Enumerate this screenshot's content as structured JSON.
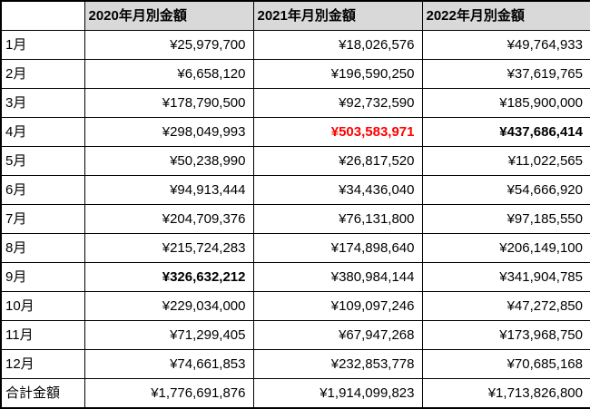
{
  "colors": {
    "header_bg": "#d9d9d9",
    "border": "#000000",
    "text": "#000000",
    "highlight_red": "#ff0000",
    "background": "#ffffff"
  },
  "table": {
    "corner_label": "",
    "columns": [
      "2020年月別金額",
      "2021年月別金額",
      "2022年月別金額"
    ],
    "rows": [
      {
        "label": "1月",
        "values": [
          "¥25,979,700",
          "¥18,026,576",
          "¥49,764,933"
        ],
        "styles": [
          "",
          "",
          ""
        ]
      },
      {
        "label": "2月",
        "values": [
          "¥6,658,120",
          "¥196,590,250",
          "¥37,619,765"
        ],
        "styles": [
          "",
          "",
          ""
        ]
      },
      {
        "label": "3月",
        "values": [
          "¥178,790,500",
          "¥92,732,590",
          "¥185,900,000"
        ],
        "styles": [
          "",
          "",
          ""
        ]
      },
      {
        "label": "4月",
        "values": [
          "¥298,049,993",
          "¥503,583,971",
          "¥437,686,414"
        ],
        "styles": [
          "",
          "red",
          "bold"
        ]
      },
      {
        "label": "5月",
        "values": [
          "¥50,238,990",
          "¥26,817,520",
          "¥11,022,565"
        ],
        "styles": [
          "",
          "",
          ""
        ]
      },
      {
        "label": "6月",
        "values": [
          "¥94,913,444",
          "¥34,436,040",
          "¥54,666,920"
        ],
        "styles": [
          "",
          "",
          ""
        ]
      },
      {
        "label": "7月",
        "values": [
          "¥204,709,376",
          "¥76,131,800",
          "¥97,185,550"
        ],
        "styles": [
          "",
          "",
          ""
        ]
      },
      {
        "label": "8月",
        "values": [
          "¥215,724,283",
          "¥174,898,640",
          "¥206,149,100"
        ],
        "styles": [
          "",
          "",
          ""
        ]
      },
      {
        "label": "9月",
        "values": [
          "¥326,632,212",
          "¥380,984,144",
          "¥341,904,785"
        ],
        "styles": [
          "bold",
          "",
          ""
        ]
      },
      {
        "label": "10月",
        "values": [
          "¥229,034,000",
          "¥109,097,246",
          "¥47,272,850"
        ],
        "styles": [
          "",
          "",
          ""
        ]
      },
      {
        "label": "11月",
        "values": [
          "¥71,299,405",
          "¥67,947,268",
          "¥173,968,750"
        ],
        "styles": [
          "",
          "",
          ""
        ]
      },
      {
        "label": "12月",
        "values": [
          "¥74,661,853",
          "¥232,853,778",
          "¥70,685,168"
        ],
        "styles": [
          "",
          "",
          ""
        ]
      }
    ],
    "total_row": {
      "label": "合計金額",
      "values": [
        "¥1,776,691,876",
        "¥1,914,099,823",
        "¥1,713,826,800"
      ],
      "styles": [
        "",
        "",
        ""
      ]
    }
  },
  "chart_data": {
    "type": "table",
    "categories": [
      "1月",
      "2月",
      "3月",
      "4月",
      "5月",
      "6月",
      "7月",
      "8月",
      "9月",
      "10月",
      "11月",
      "12月"
    ],
    "series": [
      {
        "name": "2020年月別金額",
        "values": [
          25979700,
          6658120,
          178790500,
          298049993,
          50238990,
          94913444,
          204709376,
          215724283,
          326632212,
          229034000,
          71299405,
          74661853
        ],
        "total": 1776691876
      },
      {
        "name": "2021年月別金額",
        "values": [
          18026576,
          196590250,
          92732590,
          503583971,
          26817520,
          34436040,
          76131800,
          174898640,
          380984144,
          109097246,
          67947268,
          232853778
        ],
        "total": 1914099823
      },
      {
        "name": "2022年月別金額",
        "values": [
          49764933,
          37619765,
          185900000,
          437686414,
          11022565,
          54666920,
          97185550,
          206149100,
          341904785,
          47272850,
          173968750,
          70685168
        ],
        "total": 1713826800
      }
    ],
    "total_row_label": "合計金額",
    "currency": "JPY",
    "annotations": [
      {
        "cell": "2021-4月",
        "style": "red-bold",
        "value": 503583971
      },
      {
        "cell": "2022-4月",
        "style": "bold",
        "value": 437686414
      },
      {
        "cell": "2020-9月",
        "style": "bold",
        "value": 326632212
      }
    ]
  }
}
